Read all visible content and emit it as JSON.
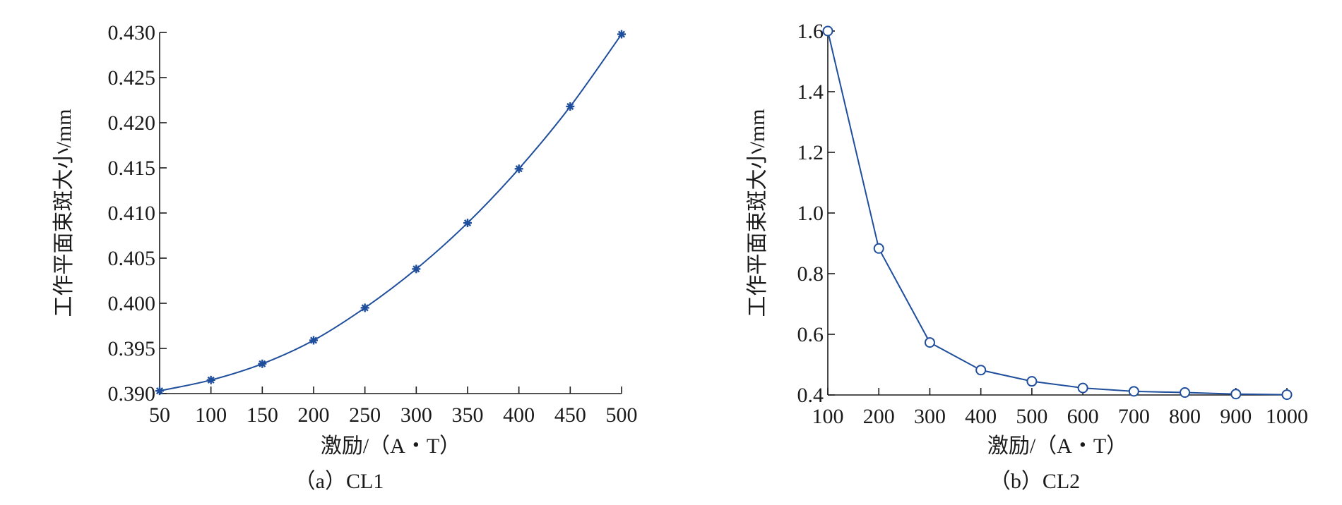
{
  "chart_data": [
    {
      "type": "line",
      "panel": "a",
      "caption": "（a）CL1",
      "xlabel": "激励/（A・T）",
      "ylabel": "工作平面束斑大小/mm",
      "xlim": [
        50,
        500
      ],
      "ylim": [
        0.39,
        0.43
      ],
      "xticks": [
        "50",
        "100",
        "150",
        "200",
        "250",
        "300",
        "350",
        "400",
        "450",
        "500"
      ],
      "yticks": [
        "0.390",
        "0.395",
        "0.400",
        "0.405",
        "0.410",
        "0.415",
        "0.420",
        "0.425",
        "0.430"
      ],
      "marker": "asterisk",
      "smooth": true,
      "series": [
        {
          "x": [
            50,
            100,
            150,
            200,
            250,
            300,
            350,
            400,
            450,
            500
          ],
          "y": [
            0.3903,
            0.3915,
            0.3933,
            0.3959,
            0.3995,
            0.4038,
            0.4089,
            0.4149,
            0.4218,
            0.4298
          ]
        }
      ]
    },
    {
      "type": "line",
      "panel": "b",
      "caption": "（b）CL2",
      "xlabel": "激励/（A・T）",
      "ylabel": "工作平面束斑大小/mm",
      "xlim": [
        100,
        1000
      ],
      "ylim": [
        0.4,
        1.6
      ],
      "xticks": [
        "100",
        "200",
        "300",
        "400",
        "500",
        "600",
        "700",
        "800",
        "900",
        "1000"
      ],
      "yticks": [
        "0.4",
        "0.6",
        "0.8",
        "1.0",
        "1.2",
        "1.4",
        "1.6"
      ],
      "marker": "circle",
      "smooth": false,
      "series": [
        {
          "x": [
            100,
            200,
            300,
            400,
            500,
            600,
            700,
            800,
            900,
            1000
          ],
          "y": [
            1.6,
            0.883,
            0.573,
            0.482,
            0.445,
            0.423,
            0.412,
            0.408,
            0.403,
            0.401
          ]
        }
      ]
    }
  ],
  "colors": {
    "series": "#1f4e9c",
    "axis": "#1a1a1a"
  }
}
